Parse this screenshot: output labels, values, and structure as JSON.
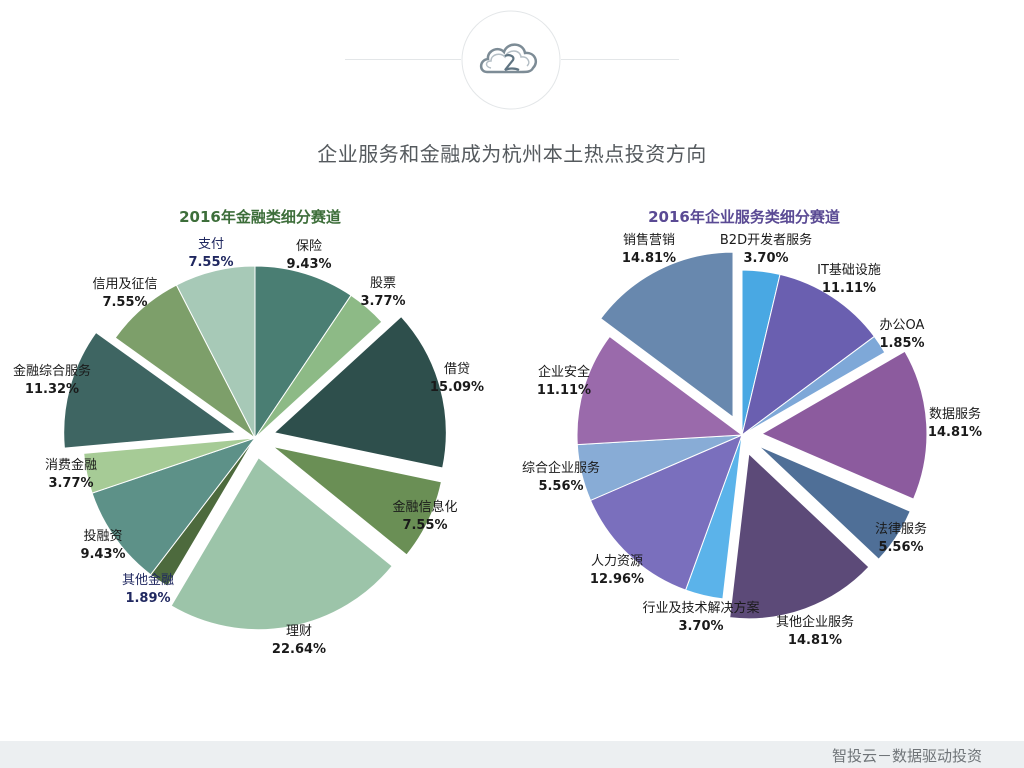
{
  "page": {
    "title": "企业服务和金融成为杭州本土热点投资方向",
    "footer": "智投云－数据驱动投资"
  },
  "chart_data": [
    {
      "type": "pie",
      "title": "2016年金融类细分赛道",
      "unit": "%",
      "slices": [
        {
          "label": "保险",
          "value": 9.43,
          "value_text": "9.43%",
          "color": "#4a7e73",
          "exploded": false
        },
        {
          "label": "股票",
          "value": 3.77,
          "value_text": "3.77%",
          "color": "#8dba86",
          "exploded": false
        },
        {
          "label": "借贷",
          "value": 15.09,
          "value_text": "15.09%",
          "color": "#2e4f4c",
          "exploded": true
        },
        {
          "label": "金融信息化",
          "value": 7.55,
          "value_text": "7.55%",
          "color": "#6a8f55",
          "exploded": true
        },
        {
          "label": "理财",
          "value": 22.64,
          "value_text": "22.64%",
          "color": "#9cc4a9",
          "exploded": true
        },
        {
          "label": "其他金融",
          "value": 1.89,
          "value_text": "1.89%",
          "color": "#4d6a3d",
          "exploded": false
        },
        {
          "label": "投融资",
          "value": 9.43,
          "value_text": "9.43%",
          "color": "#5d9188",
          "exploded": false
        },
        {
          "label": "消费金融",
          "value": 3.77,
          "value_text": "3.77%",
          "color": "#a6cb96",
          "exploded": false
        },
        {
          "label": "金融综合服务",
          "value": 11.32,
          "value_text": "11.32%",
          "color": "#3e6562",
          "exploded": true
        },
        {
          "label": "信用及征信",
          "value": 7.55,
          "value_text": "7.55%",
          "color": "#7d9f6a",
          "exploded": false
        },
        {
          "label": "支付",
          "value": 7.55,
          "value_text": "7.55%",
          "color": "#a7c9b7",
          "exploded": false
        }
      ]
    },
    {
      "type": "pie",
      "title": "2016年企业服务类细分赛道",
      "unit": "%",
      "slices": [
        {
          "label": "B2D开发者服务",
          "value": 3.7,
          "value_text": "3.70%",
          "color": "#49a8e3",
          "exploded": false
        },
        {
          "label": "IT基础设施",
          "value": 11.11,
          "value_text": "11.11%",
          "color": "#6a5fb0",
          "exploded": false
        },
        {
          "label": "办公OA",
          "value": 1.85,
          "value_text": "1.85%",
          "color": "#7ea8d8",
          "exploded": false
        },
        {
          "label": "数据服务",
          "value": 14.81,
          "value_text": "14.81%",
          "color": "#8c5b9e",
          "exploded": true
        },
        {
          "label": "法律服务",
          "value": 5.56,
          "value_text": "5.56%",
          "color": "#4f6f97",
          "exploded": true
        },
        {
          "label": "其他企业服务",
          "value": 14.81,
          "value_text": "14.81%",
          "color": "#5c4a78",
          "exploded": true
        },
        {
          "label": "行业及技术解决方案",
          "value": 3.7,
          "value_text": "3.70%",
          "color": "#5bb3ea",
          "exploded": false
        },
        {
          "label": "人力资源",
          "value": 12.96,
          "value_text": "12.96%",
          "color": "#7a6fbd",
          "exploded": false
        },
        {
          "label": "综合企业服务",
          "value": 5.56,
          "value_text": "5.56%",
          "color": "#88acd6",
          "exploded": false
        },
        {
          "label": "企业安全",
          "value": 11.11,
          "value_text": "11.11%",
          "color": "#9a6aab",
          "exploded": false
        },
        {
          "label": "销售营销",
          "value": 14.81,
          "value_text": "14.81%",
          "color": "#6888ae",
          "exploded": true
        }
      ]
    }
  ]
}
